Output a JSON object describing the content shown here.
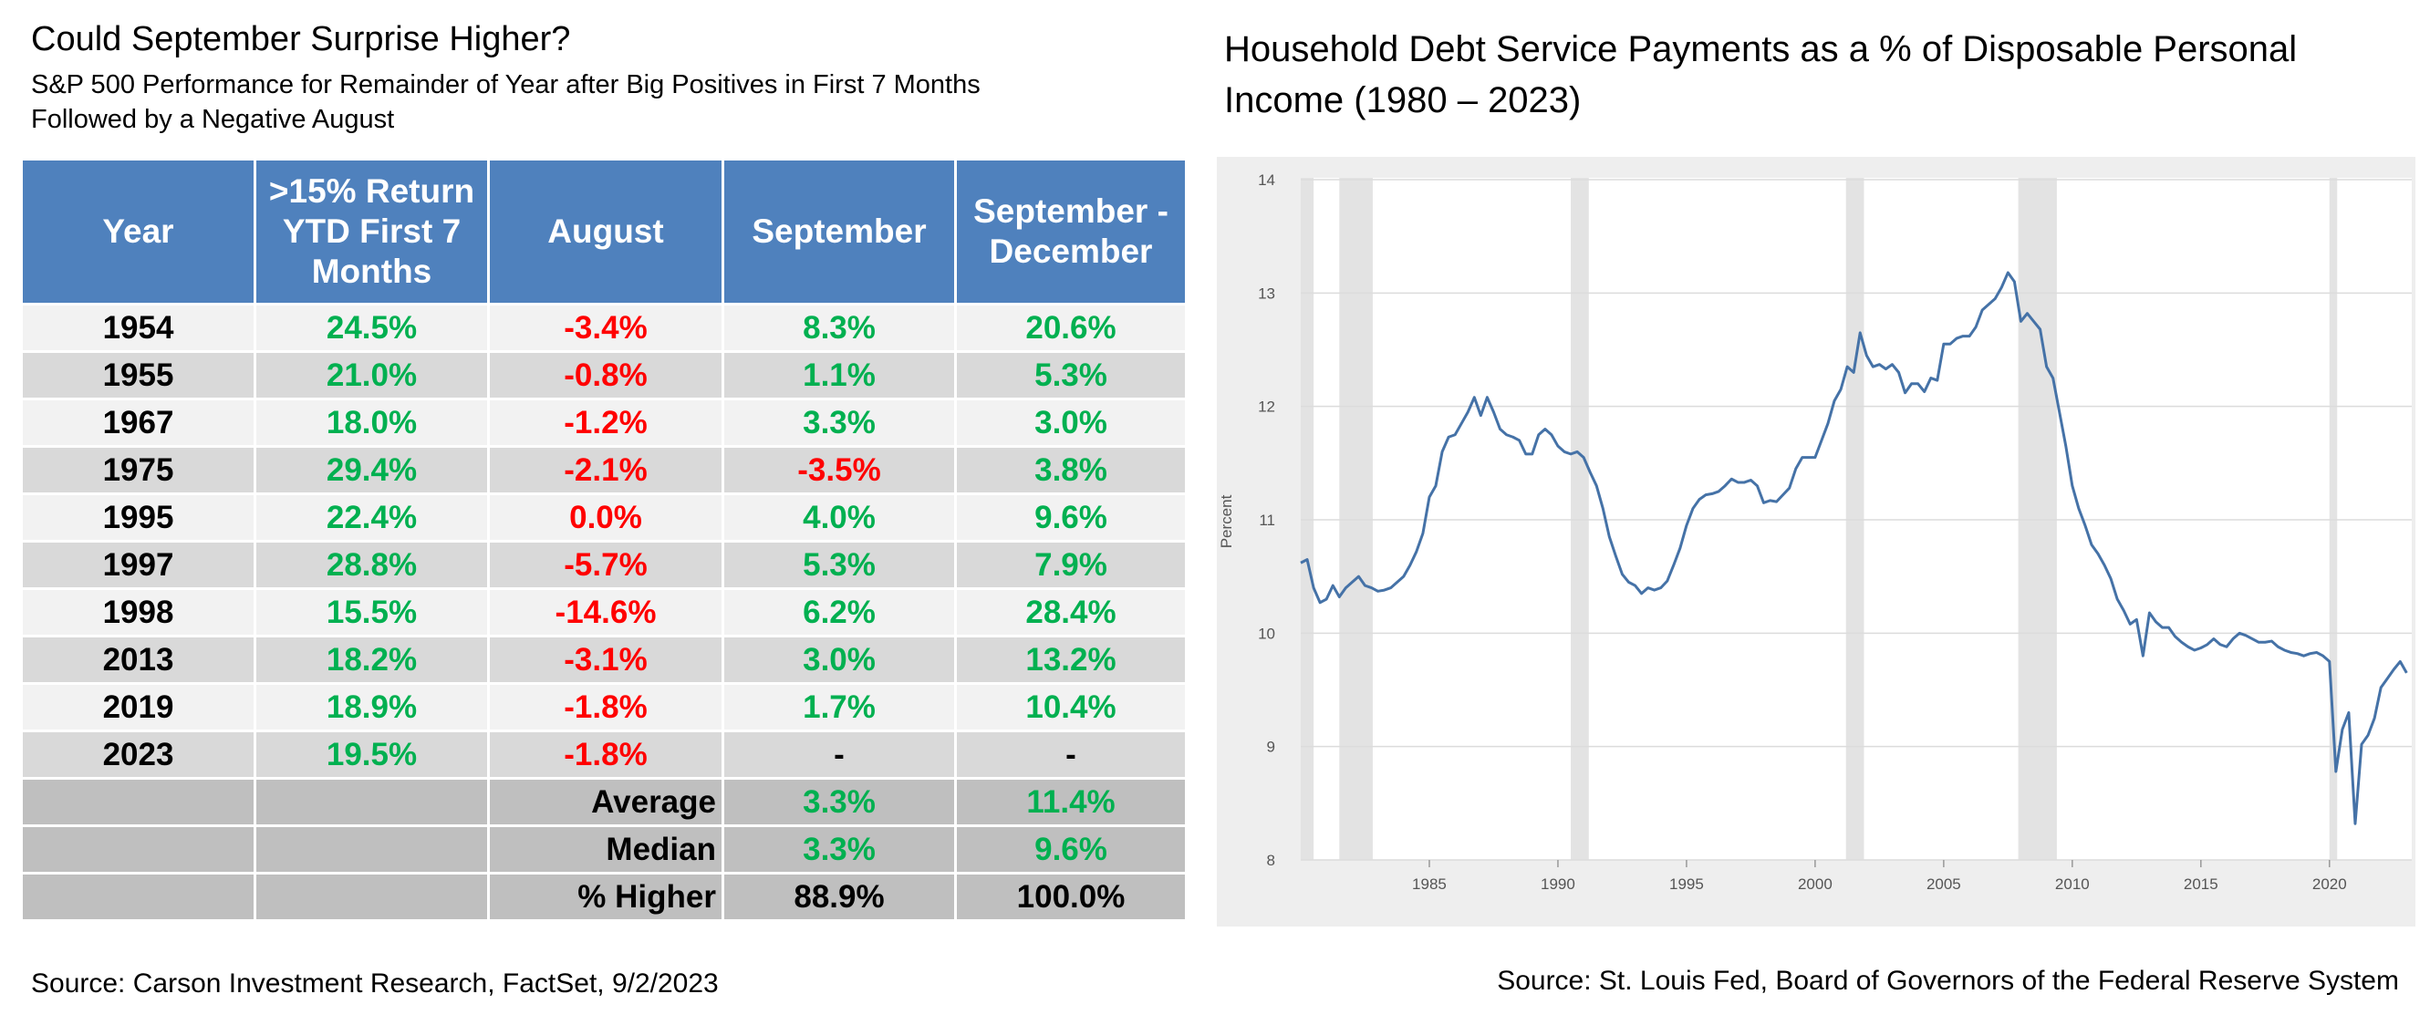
{
  "table_panel": {
    "title": "Could September Surprise Higher?",
    "subtitle_lines": [
      "S&P 500 Performance for Remainder of Year after Big Positives in First 7 Months",
      "Followed by a Negative August"
    ],
    "header": [
      "Year",
      ">15% Return YTD First 7 Months",
      "August",
      "September",
      "September - December"
    ],
    "rows": [
      {
        "cells": [
          "1954",
          "24.5%",
          "-3.4%",
          "8.3%",
          "20.6%"
        ],
        "colors": [
          "#000000",
          "#00b050",
          "#ff0000",
          "#00b050",
          "#00b050"
        ]
      },
      {
        "cells": [
          "1955",
          "21.0%",
          "-0.8%",
          "1.1%",
          "5.3%"
        ],
        "colors": [
          "#000000",
          "#00b050",
          "#ff0000",
          "#00b050",
          "#00b050"
        ]
      },
      {
        "cells": [
          "1967",
          "18.0%",
          "-1.2%",
          "3.3%",
          "3.0%"
        ],
        "colors": [
          "#000000",
          "#00b050",
          "#ff0000",
          "#00b050",
          "#00b050"
        ]
      },
      {
        "cells": [
          "1975",
          "29.4%",
          "-2.1%",
          "-3.5%",
          "3.8%"
        ],
        "colors": [
          "#000000",
          "#00b050",
          "#ff0000",
          "#ff0000",
          "#00b050"
        ]
      },
      {
        "cells": [
          "1995",
          "22.4%",
          "0.0%",
          "4.0%",
          "9.6%"
        ],
        "colors": [
          "#000000",
          "#00b050",
          "#ff0000",
          "#00b050",
          "#00b050"
        ]
      },
      {
        "cells": [
          "1997",
          "28.8%",
          "-5.7%",
          "5.3%",
          "7.9%"
        ],
        "colors": [
          "#000000",
          "#00b050",
          "#ff0000",
          "#00b050",
          "#00b050"
        ]
      },
      {
        "cells": [
          "1998",
          "15.5%",
          "-14.6%",
          "6.2%",
          "28.4%"
        ],
        "colors": [
          "#000000",
          "#00b050",
          "#ff0000",
          "#00b050",
          "#00b050"
        ]
      },
      {
        "cells": [
          "2013",
          "18.2%",
          "-3.1%",
          "3.0%",
          "13.2%"
        ],
        "colors": [
          "#000000",
          "#00b050",
          "#ff0000",
          "#00b050",
          "#00b050"
        ]
      },
      {
        "cells": [
          "2019",
          "18.9%",
          "-1.8%",
          "1.7%",
          "10.4%"
        ],
        "colors": [
          "#000000",
          "#00b050",
          "#ff0000",
          "#00b050",
          "#00b050"
        ]
      },
      {
        "cells": [
          "2023",
          "19.5%",
          "-1.8%",
          "-",
          "-"
        ],
        "colors": [
          "#000000",
          "#00b050",
          "#ff0000",
          "#000000",
          "#000000"
        ]
      },
      {
        "cells": [
          null,
          null,
          "Average",
          "3.3%",
          "11.4%"
        ],
        "colors": [
          "#000000",
          "#000000",
          "#000000",
          "#00b050",
          "#00b050"
        ],
        "summary": true
      },
      {
        "cells": [
          null,
          null,
          "Median",
          "3.3%",
          "9.6%"
        ],
        "colors": [
          "#000000",
          "#000000",
          "#000000",
          "#00b050",
          "#00b050"
        ],
        "summary": true
      },
      {
        "cells": [
          null,
          null,
          "% Higher",
          "88.9%",
          "100.0%"
        ],
        "colors": [
          "#000000",
          "#000000",
          "#000000",
          "#000000",
          "#000000"
        ],
        "summary": true
      }
    ],
    "source": "Source:  Carson Investment Research, FactSet, 9/2/2023"
  },
  "chart_data": {
    "type": "line",
    "title": "Household Debt Service Payments as a % of Disposable Personal Income (1980 – 2023)",
    "ylabel": "Percent",
    "source": "Source: St. Louis Fed, Board of Governors of the Federal Reserve System",
    "color": "#4572a7",
    "recession_color": "#e3e3e3",
    "grid": true,
    "xlim": [
      1980,
      2023.2
    ],
    "ylim": [
      8,
      14
    ],
    "xticks": [
      1985,
      1990,
      1995,
      2000,
      2005,
      2010,
      2015,
      2020
    ],
    "yticks": [
      8,
      9,
      10,
      11,
      12,
      13,
      14
    ],
    "recessions": [
      [
        1980.0,
        1980.5
      ],
      [
        1981.5,
        1982.8
      ],
      [
        1990.5,
        1991.2
      ],
      [
        2001.2,
        2001.9
      ],
      [
        2007.9,
        2009.4
      ],
      [
        2020.0,
        2020.3
      ]
    ],
    "x": [
      1980,
      1980.25,
      1980.5,
      1980.75,
      1981,
      1981.25,
      1981.5,
      1981.75,
      1982,
      1982.25,
      1982.5,
      1982.75,
      1983,
      1983.25,
      1983.5,
      1983.75,
      1984,
      1984.25,
      1984.5,
      1984.75,
      1985,
      1985.25,
      1985.5,
      1985.75,
      1986,
      1986.25,
      1986.5,
      1986.75,
      1987,
      1987.25,
      1987.5,
      1987.75,
      1988,
      1988.25,
      1988.5,
      1988.75,
      1989,
      1989.25,
      1989.5,
      1989.75,
      1990,
      1990.25,
      1990.5,
      1990.75,
      1991,
      1991.25,
      1991.5,
      1991.75,
      1992,
      1992.25,
      1992.5,
      1992.75,
      1993,
      1993.25,
      1993.5,
      1993.75,
      1994,
      1994.25,
      1994.5,
      1994.75,
      1995,
      1995.25,
      1995.5,
      1995.75,
      1996,
      1996.25,
      1996.5,
      1996.75,
      1997,
      1997.25,
      1997.5,
      1997.75,
      1998,
      1998.25,
      1998.5,
      1998.75,
      1999,
      1999.25,
      1999.5,
      1999.75,
      2000,
      2000.25,
      2000.5,
      2000.75,
      2001,
      2001.25,
      2001.5,
      2001.75,
      2002,
      2002.25,
      2002.5,
      2002.75,
      2003,
      2003.25,
      2003.5,
      2003.75,
      2004,
      2004.25,
      2004.5,
      2004.75,
      2005,
      2005.25,
      2005.5,
      2005.75,
      2006,
      2006.25,
      2006.5,
      2006.75,
      2007,
      2007.25,
      2007.5,
      2007.75,
      2008,
      2008.25,
      2008.5,
      2008.75,
      2009,
      2009.25,
      2009.5,
      2009.75,
      2010,
      2010.25,
      2010.5,
      2010.75,
      2011,
      2011.25,
      2011.5,
      2011.75,
      2012,
      2012.25,
      2012.5,
      2012.75,
      2013,
      2013.25,
      2013.5,
      2013.75,
      2014,
      2014.25,
      2014.5,
      2014.75,
      2015,
      2015.25,
      2015.5,
      2015.75,
      2016,
      2016.25,
      2016.5,
      2016.75,
      2017,
      2017.25,
      2017.5,
      2017.75,
      2018,
      2018.25,
      2018.5,
      2018.75,
      2019,
      2019.25,
      2019.5,
      2019.75,
      2020,
      2020.25,
      2020.5,
      2020.75,
      2021,
      2021.25,
      2021.5,
      2021.75,
      2022,
      2022.25,
      2022.5,
      2022.75,
      2023
    ],
    "values": [
      10.62,
      10.65,
      10.4,
      10.27,
      10.3,
      10.42,
      10.32,
      10.4,
      10.45,
      10.5,
      10.42,
      10.4,
      10.37,
      10.38,
      10.4,
      10.45,
      10.5,
      10.6,
      10.72,
      10.88,
      11.2,
      11.3,
      11.6,
      11.73,
      11.75,
      11.85,
      11.95,
      12.08,
      11.92,
      12.08,
      11.95,
      11.8,
      11.75,
      11.73,
      11.7,
      11.58,
      11.58,
      11.75,
      11.8,
      11.75,
      11.65,
      11.6,
      11.58,
      11.6,
      11.55,
      11.42,
      11.3,
      11.1,
      10.85,
      10.68,
      10.52,
      10.45,
      10.42,
      10.35,
      10.4,
      10.38,
      10.4,
      10.46,
      10.6,
      10.75,
      10.95,
      11.1,
      11.18,
      11.22,
      11.23,
      11.25,
      11.3,
      11.36,
      11.33,
      11.33,
      11.35,
      11.3,
      11.15,
      11.17,
      11.16,
      11.22,
      11.28,
      11.45,
      11.55,
      11.55,
      11.55,
      11.7,
      11.85,
      12.05,
      12.15,
      12.35,
      12.3,
      12.65,
      12.45,
      12.35,
      12.37,
      12.33,
      12.37,
      12.3,
      12.12,
      12.2,
      12.2,
      12.13,
      12.25,
      12.23,
      12.55,
      12.55,
      12.6,
      12.62,
      12.62,
      12.7,
      12.85,
      12.9,
      12.95,
      13.05,
      13.18,
      13.1,
      12.75,
      12.82,
      12.75,
      12.68,
      12.35,
      12.25,
      11.95,
      11.65,
      11.3,
      11.1,
      10.95,
      10.78,
      10.7,
      10.6,
      10.48,
      10.3,
      10.2,
      10.08,
      10.12,
      9.8,
      10.18,
      10.1,
      10.05,
      10.05,
      9.97,
      9.92,
      9.88,
      9.85,
      9.87,
      9.9,
      9.95,
      9.9,
      9.88,
      9.95,
      10.0,
      9.98,
      9.95,
      9.92,
      9.92,
      9.93,
      9.88,
      9.85,
      9.83,
      9.82,
      9.8,
      9.82,
      9.83,
      9.8,
      9.75,
      8.78,
      9.15,
      9.3,
      8.32,
      9.02,
      9.1,
      9.25,
      9.52,
      9.6,
      9.68,
      9.75,
      9.65
    ]
  }
}
